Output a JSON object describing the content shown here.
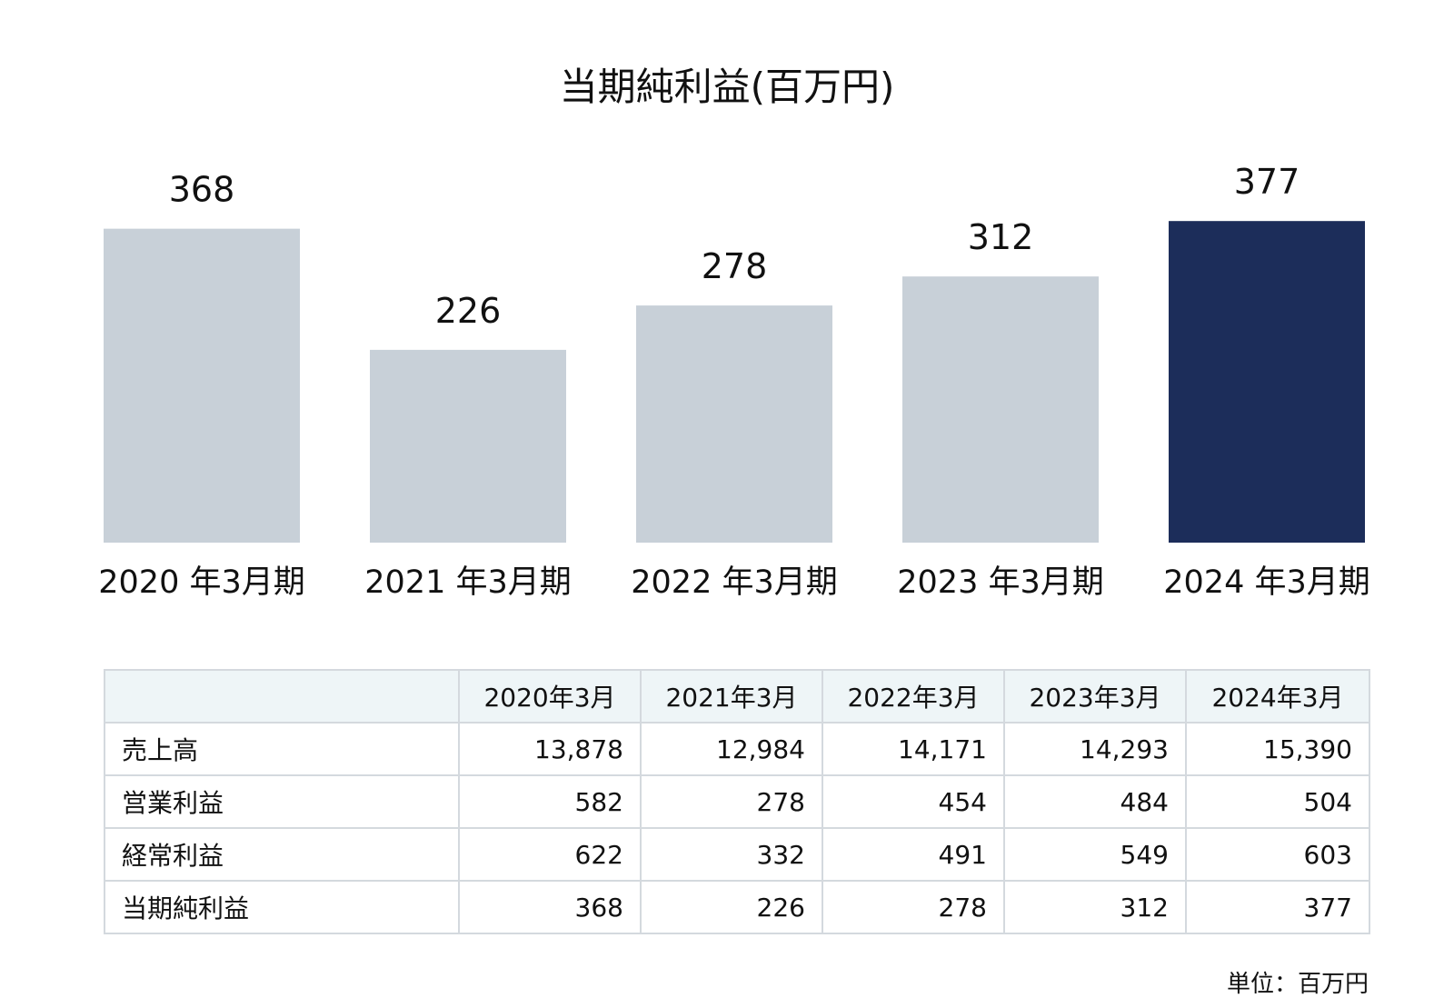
{
  "chart_data": {
    "type": "bar",
    "title": "当期純利益(百万円)",
    "categories": [
      "2020 年3月期",
      "2021 年3月期",
      "2022 年3月期",
      "2023 年3月期",
      "2024 年3月期"
    ],
    "values": [
      368,
      226,
      278,
      312,
      377
    ],
    "highlight_index": 4,
    "colors": {
      "default": "#c8d0d8",
      "highlight": "#1c2d5a"
    },
    "grid": false,
    "legend": "none"
  },
  "table": {
    "headers": [
      "",
      "2020年3月",
      "2021年3月",
      "2022年3月",
      "2023年3月",
      "2024年3月"
    ],
    "rows": [
      {
        "label": "売上高",
        "values": [
          "13,878",
          "12,984",
          "14,171",
          "14,293",
          "15,390"
        ]
      },
      {
        "label": "営業利益",
        "values": [
          "582",
          "278",
          "454",
          "484",
          "504"
        ]
      },
      {
        "label": "経常利益",
        "values": [
          "622",
          "332",
          "491",
          "549",
          "603"
        ]
      },
      {
        "label": "当期純利益",
        "values": [
          "368",
          "226",
          "278",
          "312",
          "377"
        ]
      }
    ]
  },
  "unit_note": "単位：百万円"
}
